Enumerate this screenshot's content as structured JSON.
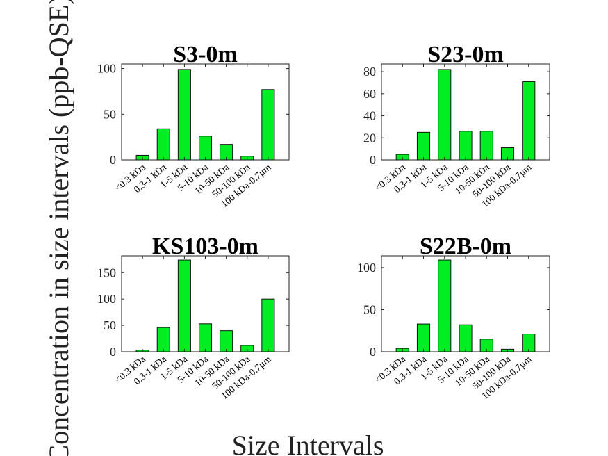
{
  "figure": {
    "ylabel": "Concentration in size intervals (ppb-QSE)",
    "xlabel": "Size Intervals"
  },
  "colors": {
    "bar_fill": "#00ee22",
    "bar_stroke": "#111111",
    "axis": "#222222"
  },
  "chart_data": [
    {
      "type": "bar",
      "title": "S3-0m",
      "categories": [
        "<0.3 kDa",
        "0.3-1 kDa",
        "1-5 kDa",
        "5-10 kDa",
        "10-50 kDa",
        "50-100 kDa",
        "100 kDa-0.7μm"
      ],
      "values": [
        5,
        34,
        99,
        26,
        17,
        4,
        77
      ],
      "ylim": [
        0,
        105
      ],
      "yticks": [
        0,
        50,
        100
      ],
      "grid": false
    },
    {
      "type": "bar",
      "title": "S23-0m",
      "categories": [
        "<0.3 kDa",
        "0.3-1 kDa",
        "1-5 kDa",
        "5-10 kDa",
        "10-50 kDa",
        "50-100 kDa",
        "100 kDa-0.7μm"
      ],
      "values": [
        5,
        25,
        82,
        26,
        26,
        11,
        71
      ],
      "ylim": [
        0,
        87
      ],
      "yticks": [
        0,
        20,
        40,
        60,
        80
      ],
      "grid": false
    },
    {
      "type": "bar",
      "title": "KS103-0m",
      "categories": [
        "<0.3 kDa",
        "0.3-1 kDa",
        "1-5 kDa",
        "5-10 kDa",
        "10-50 kDa",
        "50-100 kDa",
        "100 kDa-0.7μm"
      ],
      "values": [
        3,
        46,
        174,
        53,
        40,
        12,
        100
      ],
      "ylim": [
        0,
        182
      ],
      "yticks": [
        0,
        50,
        100,
        150
      ],
      "grid": false
    },
    {
      "type": "bar",
      "title": "S22B-0m",
      "categories": [
        "<0.3 kDa",
        "0.3-1 kDa",
        "1-5 kDa",
        "5-10 kDa",
        "10-50 kDa",
        "50-100 kDa",
        "100 kDa-0.7μm"
      ],
      "values": [
        4,
        33,
        109,
        32,
        15,
        3,
        21
      ],
      "ylim": [
        0,
        114
      ],
      "yticks": [
        0,
        50,
        100
      ],
      "grid": false
    }
  ]
}
